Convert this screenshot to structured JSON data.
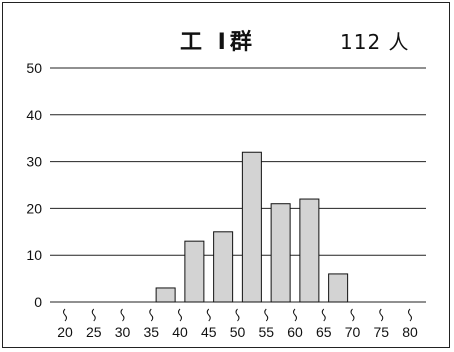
{
  "header": {
    "title": "工 I群",
    "count": "112 人"
  },
  "chart_data": {
    "type": "bar",
    "title": "工 I群",
    "annotation": "112 人",
    "categories": [
      "20",
      "25",
      "30",
      "35",
      "40",
      "45",
      "50",
      "55",
      "60",
      "65",
      "70",
      "75",
      "80"
    ],
    "values": [
      0,
      0,
      0,
      3,
      13,
      15,
      32,
      21,
      22,
      6,
      0,
      0,
      0
    ],
    "yticks": [
      0,
      10,
      20,
      30,
      40,
      50
    ],
    "ylim": [
      0,
      50
    ],
    "xlabel": "",
    "ylabel": "",
    "grid": "horizontal",
    "bar_color": "#d3d3d3",
    "bar_edge_color": "#111111",
    "axis_break_marker": "wavy"
  }
}
